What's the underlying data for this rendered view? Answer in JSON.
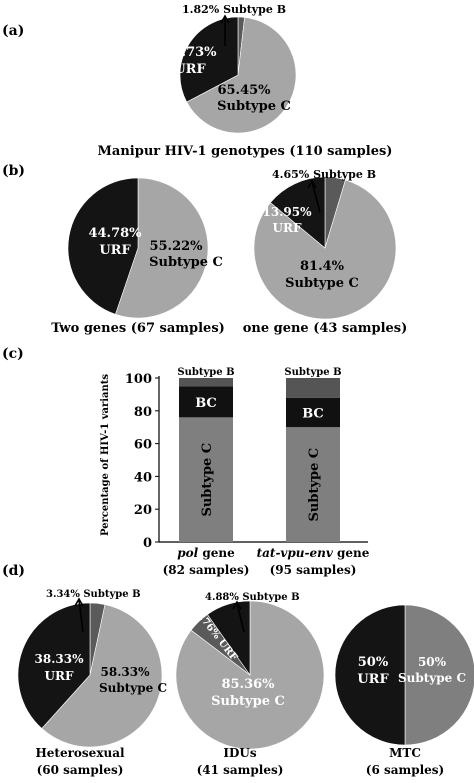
{
  "colors": {
    "subtype_c": "#a6a6a6",
    "urf": "#141414",
    "subtype_b": "#5a5a5a",
    "bar_c": "#7f7f7f",
    "bar_bc": "#111111",
    "bar_b": "#555555",
    "pie_d3_c": "#7f7f7f"
  },
  "panels": {
    "a": "(a)",
    "b": "(b)",
    "c": "(c)",
    "d": "(d)"
  },
  "chart_data": [
    {
      "type": "pie",
      "panel": "(a)",
      "caption": "Manipur HIV-1 genotypes (110 samples)",
      "slices": [
        {
          "label": "Subtype C",
          "value": 65.45,
          "text": "65.45%"
        },
        {
          "label": "URF",
          "value": 32.73,
          "text": "32.73%"
        },
        {
          "label": "Subtype B",
          "value": 1.82,
          "text": "1.82% Subtype B"
        }
      ]
    },
    {
      "type": "pie",
      "panel": "(b)",
      "caption": "Two genes (67 samples)",
      "slices": [
        {
          "label": "Subtype C",
          "value": 55.22,
          "text": "55.22%"
        },
        {
          "label": "URF",
          "value": 44.78,
          "text": "44.78%"
        }
      ]
    },
    {
      "type": "pie",
      "panel": "(b)",
      "caption": "one gene (43 samples)",
      "slices": [
        {
          "label": "Subtype C",
          "value": 81.4,
          "text": "81.4%"
        },
        {
          "label": "URF",
          "value": 13.95,
          "text": "13.95%"
        },
        {
          "label": "Subtype B",
          "value": 4.65,
          "text": "4.65% Subtype B"
        }
      ]
    },
    {
      "type": "bar",
      "stacked": true,
      "panel": "(c)",
      "ylabel": "Percentage of HIV-1 variants",
      "ylim": [
        0,
        100
      ],
      "yticks": [
        "0",
        "20",
        "40",
        "60",
        "80",
        "100"
      ],
      "categories": [
        {
          "italic": "pol",
          "rest": " gene",
          "samples": "(82 samples)"
        },
        {
          "italic": "tat-vpu-env",
          "rest": " gene",
          "samples": "(95 samples)"
        }
      ],
      "series": [
        {
          "name": "Subtype C",
          "values": [
            76,
            70
          ]
        },
        {
          "name": "BC",
          "values": [
            19,
            18
          ]
        },
        {
          "name": "Subtype B",
          "values": [
            5,
            12
          ]
        }
      ]
    },
    {
      "type": "pie",
      "panel": "(d)",
      "caption": "Heterosexual",
      "samples": "(60 samples)",
      "slices": [
        {
          "label": "Subtype C",
          "value": 58.33,
          "text": "58.33%"
        },
        {
          "label": "URF",
          "value": 38.33,
          "text": "38.33%"
        },
        {
          "label": "Subtype B",
          "value": 3.34,
          "text": "3.34% Subtype B"
        }
      ]
    },
    {
      "type": "pie",
      "panel": "(d)",
      "caption": "IDUs",
      "samples": "(41 samples)",
      "slices": [
        {
          "label": "Subtype C",
          "value": 85.36,
          "text": "85.36%"
        },
        {
          "label": "URF",
          "value": 9.76,
          "text": "9.76% URF"
        },
        {
          "label": "Subtype B",
          "value": 4.88,
          "text": "4.88% Subtype B"
        }
      ]
    },
    {
      "type": "pie",
      "panel": "(d)",
      "caption": "MTC",
      "samples": "(6 samples)",
      "slices": [
        {
          "label": "Subtype C",
          "value": 50,
          "text": "50%"
        },
        {
          "label": "URF",
          "value": 50,
          "text": "50%"
        }
      ]
    }
  ]
}
